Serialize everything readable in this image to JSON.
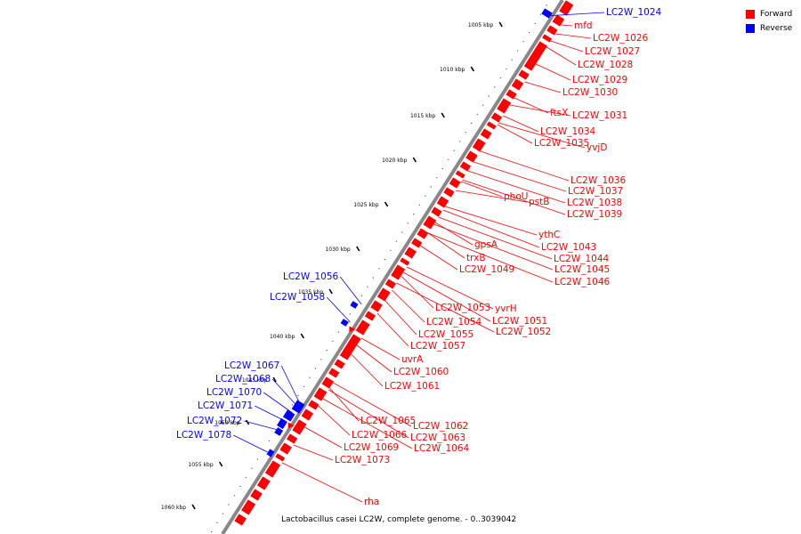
{
  "legend": {
    "position": "top-right",
    "items": [
      {
        "label": "Forward",
        "color": "#ff0000"
      },
      {
        "label": "Reverse",
        "color": "#0000ff"
      }
    ]
  },
  "caption": "Lactobacillus casei LC2W, complete genome. - 0..3039042",
  "scale_ticks": [
    "1005 kbp",
    "1010 kbp",
    "1015 kbp",
    "1020 kbp",
    "1025 kbp",
    "1030 kbp",
    "1035 kbp",
    "1040 kbp",
    "1045 kbp",
    "1050 kbp",
    "1055 kbp",
    "1060 kbp"
  ],
  "forward_labels": [
    "mfd",
    "LC2W_1026",
    "LC2W_1027",
    "LC2W_1028",
    "LC2W_1029",
    "LC2W_1030",
    "ftsX",
    "LC2W_1031",
    "LC2W_1034",
    "LC2W_1035",
    "yvjD",
    "LC2W_1036",
    "LC2W_1037",
    "LC2W_1038",
    "LC2W_1039",
    "phoU",
    "pstB",
    "ythC",
    "LC2W_1043",
    "LC2W_1044",
    "LC2W_1045",
    "LC2W_1046",
    "gpsA",
    "trxB",
    "LC2W_1049",
    "LC2W_1053",
    "yvrH",
    "LC2W_1051",
    "LC2W_1052",
    "LC2W_1054",
    "LC2W_1055",
    "LC2W_1057",
    "uvrA",
    "LC2W_1060",
    "LC2W_1061",
    "LC2W_1065",
    "LC2W_1062",
    "LC2W_1063",
    "LC2W_1066",
    "LC2W_1064",
    "LC2W_1069",
    "LC2W_1073",
    "rha"
  ],
  "reverse_labels": [
    "LC2W_1024",
    "LC2W_1056",
    "LC2W_1058",
    "LC2W_1067",
    "LC2W_1068",
    "LC2W_1070",
    "LC2W_1071",
    "LC2W_1072",
    "LC2W_1078"
  ],
  "colors": {
    "forward": "#ff0000",
    "reverse": "#0000ff",
    "axis": "#888888",
    "ticks": "#000000"
  }
}
